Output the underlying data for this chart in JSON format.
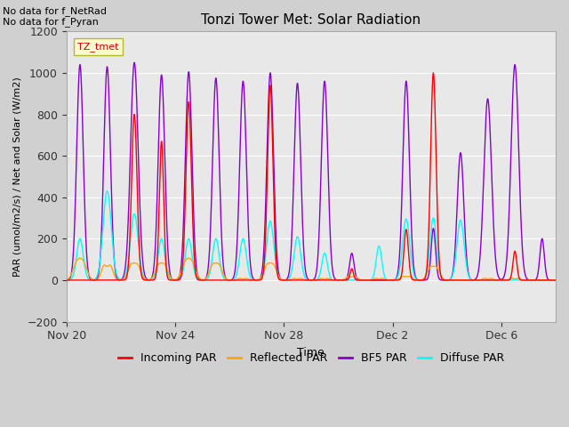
{
  "title": "Tonzi Tower Met: Solar Radiation",
  "ylabel": "PAR (umol/m2/s) / Net and Solar (W/m2)",
  "xlabel": "Time",
  "ylim": [
    -200,
    1200
  ],
  "yticks": [
    -200,
    0,
    200,
    400,
    600,
    800,
    1000,
    1200
  ],
  "no_data_text": [
    "No data for f_NetRad",
    "No data for f_Pyran"
  ],
  "legend_label": "TZ_tmet",
  "legend_entries": [
    {
      "label": "Incoming PAR",
      "color": "#ff0000"
    },
    {
      "label": "Reflected PAR",
      "color": "#ffa500"
    },
    {
      "label": "BF5 PAR",
      "color": "#8800cc"
    },
    {
      "label": "Diffuse PAR",
      "color": "#00ffff"
    }
  ],
  "xtick_labels": [
    "Nov 20",
    "Nov 24",
    "Nov 28",
    "Dec 2",
    "Dec 6"
  ],
  "xtick_positions": [
    0,
    4,
    8,
    12,
    16
  ],
  "total_days": 18,
  "bf5_peaks": [
    1040,
    1030,
    1050,
    990,
    1005,
    975,
    960,
    1000,
    950,
    960,
    130,
    0,
    960,
    250,
    615,
    875,
    1040,
    200
  ],
  "incoming_peaks": [
    0,
    0,
    800,
    670,
    860,
    0,
    0,
    940,
    0,
    0,
    55,
    0,
    245,
    1000,
    0,
    0,
    140,
    0
  ],
  "reflected_peaks": [
    90,
    80,
    80,
    80,
    90,
    80,
    10,
    80,
    10,
    10,
    20,
    10,
    20,
    65,
    0,
    10,
    10,
    0
  ],
  "diffuse_peaks": [
    200,
    430,
    320,
    200,
    200,
    200,
    200,
    285,
    210,
    130,
    0,
    165,
    295,
    300,
    290,
    0,
    0,
    0
  ],
  "bf5_widths": [
    0.12,
    0.12,
    0.14,
    0.12,
    0.12,
    0.12,
    0.12,
    0.12,
    0.12,
    0.12,
    0.08,
    0.06,
    0.12,
    0.08,
    0.12,
    0.14,
    0.14,
    0.08
  ],
  "inc_widths": [
    0.05,
    0.05,
    0.1,
    0.08,
    0.1,
    0.05,
    0.05,
    0.1,
    0.05,
    0.05,
    0.06,
    0.05,
    0.08,
    0.1,
    0.05,
    0.05,
    0.07,
    0.05
  ],
  "ref_widths": [
    0.14,
    0.1,
    0.12,
    0.12,
    0.14,
    0.12,
    0.08,
    0.12,
    0.08,
    0.08,
    0.1,
    0.08,
    0.1,
    0.12,
    0.05,
    0.08,
    0.08,
    0.05
  ],
  "dif_widths": [
    0.12,
    0.15,
    0.14,
    0.12,
    0.12,
    0.12,
    0.12,
    0.13,
    0.12,
    0.1,
    0.05,
    0.1,
    0.13,
    0.12,
    0.13,
    0.05,
    0.05,
    0.05
  ]
}
